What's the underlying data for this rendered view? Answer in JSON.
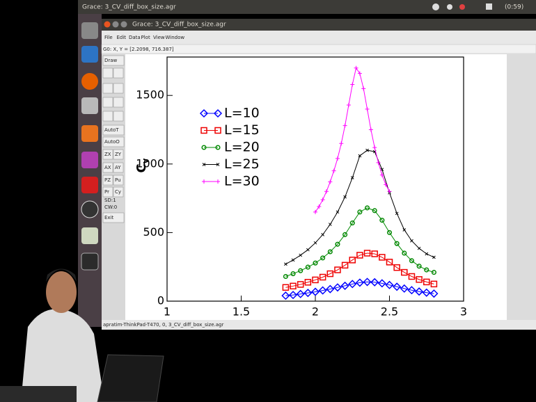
{
  "topbar": {
    "title": "Grace: 3_CV_diff_box_size.agr",
    "clock": "(0:59)"
  },
  "window": {
    "title": "Grace: 3_CV_diff_box_size.agr",
    "menu": [
      "File",
      "Edit",
      "Data",
      "Plot",
      "View",
      "Window"
    ],
    "locator": "G0: X, Y = [2.2098, 716.387]",
    "tools": [
      "Draw",
      "AutoT",
      "AutoO",
      "ZX",
      "ZY",
      "AX",
      "AY",
      "PZ",
      "Pu",
      "Pr",
      "Cy",
      "SD:1",
      "CW:0",
      "Exit"
    ],
    "status": "apratim-ThinkPad-T470, 0, 3_CV_diff_box_size.agr"
  },
  "chart_data": {
    "type": "line",
    "y_label": "C",
    "y_label_sub": "v",
    "xlim": [
      1,
      3
    ],
    "xticks": [
      1,
      1.5,
      2,
      2.5,
      3
    ],
    "ylim": [
      0,
      1780
    ],
    "yticks": [
      0,
      500,
      1000,
      1500
    ],
    "legend": "upper-left",
    "series": [
      {
        "name": "L=10",
        "color": "#0000ff",
        "marker": "diamond",
        "x": [
          1.8,
          1.85,
          1.9,
          1.95,
          2.0,
          2.05,
          2.1,
          2.15,
          2.2,
          2.25,
          2.3,
          2.35,
          2.4,
          2.45,
          2.5,
          2.55,
          2.6,
          2.65,
          2.7,
          2.75,
          2.8
        ],
        "values": [
          40,
          45,
          52,
          60,
          68,
          78,
          88,
          100,
          112,
          125,
          135,
          140,
          138,
          130,
          118,
          105,
          92,
          80,
          70,
          62,
          55
        ]
      },
      {
        "name": "L=15",
        "color": "#ee0000",
        "marker": "square",
        "x": [
          1.8,
          1.85,
          1.9,
          1.95,
          2.0,
          2.05,
          2.1,
          2.15,
          2.2,
          2.25,
          2.3,
          2.35,
          2.4,
          2.45,
          2.5,
          2.55,
          2.6,
          2.65,
          2.7,
          2.75,
          2.8
        ],
        "values": [
          100,
          110,
          122,
          138,
          155,
          175,
          200,
          228,
          262,
          300,
          335,
          350,
          345,
          320,
          285,
          245,
          210,
          180,
          158,
          140,
          125
        ]
      },
      {
        "name": "L=20",
        "color": "#008800",
        "marker": "circle",
        "x": [
          1.8,
          1.85,
          1.9,
          1.95,
          2.0,
          2.05,
          2.1,
          2.15,
          2.2,
          2.25,
          2.3,
          2.35,
          2.4,
          2.45,
          2.5,
          2.55,
          2.6,
          2.65,
          2.7,
          2.75,
          2.8
        ],
        "values": [
          180,
          200,
          222,
          248,
          278,
          315,
          360,
          415,
          485,
          570,
          650,
          680,
          660,
          590,
          500,
          420,
          350,
          295,
          255,
          228,
          210
        ]
      },
      {
        "name": "L=25",
        "color": "#000000",
        "marker": "cross",
        "x": [
          1.8,
          1.85,
          1.9,
          1.95,
          2.0,
          2.05,
          2.1,
          2.15,
          2.2,
          2.25,
          2.3,
          2.35,
          2.4,
          2.45,
          2.5,
          2.55,
          2.6,
          2.65,
          2.7,
          2.75,
          2.8
        ],
        "values": [
          270,
          300,
          335,
          375,
          425,
          485,
          560,
          650,
          760,
          900,
          1060,
          1100,
          1090,
          960,
          790,
          640,
          520,
          440,
          385,
          345,
          320
        ]
      },
      {
        "name": "L=30",
        "color": "#ff00ff",
        "marker": "plus",
        "x": [
          2.0,
          2.025,
          2.05,
          2.075,
          2.1,
          2.125,
          2.15,
          2.175,
          2.2,
          2.225,
          2.25,
          2.275,
          2.3,
          2.325,
          2.35,
          2.375,
          2.4,
          2.425,
          2.45,
          2.475,
          2.5
        ],
        "values": [
          650,
          690,
          740,
          800,
          870,
          950,
          1040,
          1150,
          1280,
          1430,
          1580,
          1700,
          1660,
          1550,
          1400,
          1250,
          1120,
          1010,
          920,
          850,
          800
        ]
      }
    ]
  }
}
